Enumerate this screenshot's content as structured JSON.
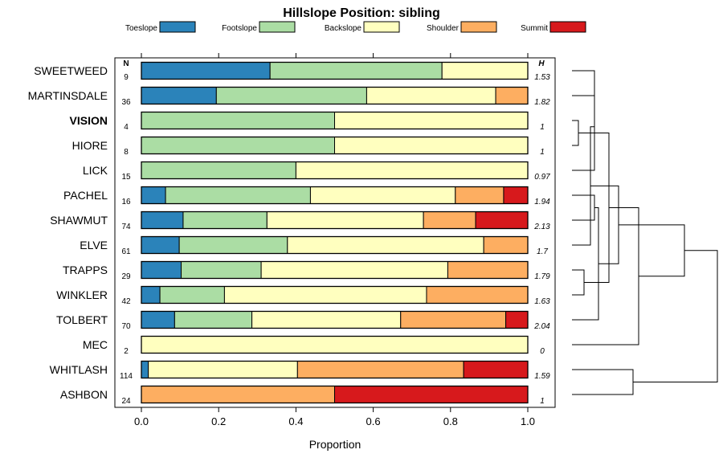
{
  "chart_data": {
    "type": "bar",
    "orientation": "horizontal",
    "stacked": true,
    "title": "Hillslope Position: sibling",
    "xlabel": "Proportion",
    "xlim": [
      0,
      1
    ],
    "x_ticks": [
      "0.0",
      "0.2",
      "0.4",
      "0.6",
      "0.8",
      "1.0"
    ],
    "n_header": "N",
    "h_header": "H",
    "highlight": "VISION",
    "legend": [
      {
        "name": "Toeslope",
        "color": "#2B83BA"
      },
      {
        "name": "Footslope",
        "color": "#ABDDA4"
      },
      {
        "name": "Backslope",
        "color": "#FFFFBF"
      },
      {
        "name": "Shoulder",
        "color": "#FDAE61"
      },
      {
        "name": "Summit",
        "color": "#D7191C"
      }
    ],
    "rows": [
      {
        "name": "SWEETWEED",
        "n": "9",
        "h": "1.53",
        "values": [
          0.333,
          0.445,
          0.222,
          0,
          0
        ]
      },
      {
        "name": "MARTINSDALE",
        "n": "36",
        "h": "1.82",
        "values": [
          0.194,
          0.389,
          0.334,
          0.083,
          0
        ]
      },
      {
        "name": "VISION",
        "n": "4",
        "h": "1",
        "values": [
          0,
          0.5,
          0.5,
          0,
          0
        ]
      },
      {
        "name": "HIORE",
        "n": "8",
        "h": "1",
        "values": [
          0,
          0.5,
          0.5,
          0,
          0
        ]
      },
      {
        "name": "LICK",
        "n": "15",
        "h": "0.97",
        "values": [
          0,
          0.4,
          0.6,
          0,
          0
        ]
      },
      {
        "name": "PACHEL",
        "n": "16",
        "h": "1.94",
        "values": [
          0.0625,
          0.375,
          0.375,
          0.125,
          0.0625
        ]
      },
      {
        "name": "SHAWMUT",
        "n": "74",
        "h": "2.13",
        "values": [
          0.108,
          0.217,
          0.405,
          0.135,
          0.135
        ]
      },
      {
        "name": "ELVE",
        "n": "61",
        "h": "1.7",
        "values": [
          0.098,
          0.28,
          0.508,
          0.114,
          0
        ]
      },
      {
        "name": "TRAPPS",
        "n": "29",
        "h": "1.79",
        "values": [
          0.103,
          0.207,
          0.483,
          0.207,
          0
        ]
      },
      {
        "name": "WINKLER",
        "n": "42",
        "h": "1.63",
        "values": [
          0.048,
          0.167,
          0.523,
          0.262,
          0
        ]
      },
      {
        "name": "TOLBERT",
        "n": "70",
        "h": "2.04",
        "values": [
          0.086,
          0.2,
          0.385,
          0.272,
          0.057
        ]
      },
      {
        "name": "MEC",
        "n": "2",
        "h": "0",
        "values": [
          0,
          0,
          1,
          0,
          0
        ]
      },
      {
        "name": "WHITLASH",
        "n": "114",
        "h": "1.59",
        "values": [
          0.018,
          0.0,
          0.386,
          0.43,
          0.166
        ]
      },
      {
        "name": "ASHBON",
        "n": "24",
        "h": "1",
        "values": [
          0,
          0,
          0,
          0.5,
          0.5
        ]
      }
    ]
  }
}
